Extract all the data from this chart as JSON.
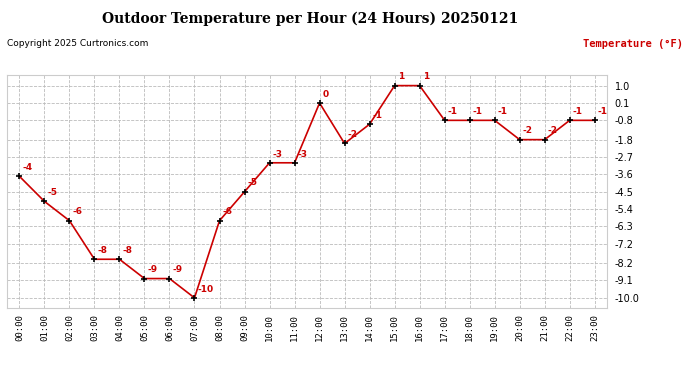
{
  "title": "Outdoor Temperature per Hour (24 Hours) 20250121",
  "copyright": "Copyright 2025 Curtronics.com",
  "legend_label": "Temperature (°F)",
  "hours": [
    "00:00",
    "01:00",
    "02:00",
    "03:00",
    "04:00",
    "05:00",
    "06:00",
    "07:00",
    "08:00",
    "09:00",
    "10:00",
    "11:00",
    "12:00",
    "13:00",
    "14:00",
    "15:00",
    "16:00",
    "17:00",
    "18:00",
    "19:00",
    "20:00",
    "21:00",
    "22:00",
    "23:00"
  ],
  "temps": [
    -3.7,
    -5.0,
    -6.0,
    -8.0,
    -8.0,
    -9.0,
    -9.0,
    -10.0,
    -6.0,
    -4.5,
    -3.0,
    -3.0,
    0.1,
    -2.0,
    -1.0,
    1.0,
    1.0,
    -0.8,
    -0.8,
    -0.8,
    -1.8,
    -1.8,
    -0.8,
    -0.8
  ],
  "labels": [
    "-4",
    "-5",
    "-6",
    "-8",
    "-8",
    "-9",
    "-9",
    "-10",
    "-6",
    "-5",
    "-3",
    "-3",
    "0",
    "-2",
    "-1",
    "1",
    "1",
    "-1",
    "-1",
    "-1",
    "-2",
    "-2",
    "-1",
    "-1"
  ],
  "line_color": "#cc0000",
  "marker_color": "#000000",
  "label_color": "#cc0000",
  "bg_color": "#ffffff",
  "grid_color": "#bbbbbb",
  "title_color": "#000000",
  "copyright_color": "#000000",
  "legend_color": "#cc0000",
  "ylim_min": -10.5,
  "ylim_max": 1.55,
  "yticks": [
    1.0,
    0.1,
    -0.8,
    -1.8,
    -2.7,
    -3.6,
    -4.5,
    -5.4,
    -6.3,
    -7.2,
    -8.2,
    -9.1,
    -10.0
  ]
}
